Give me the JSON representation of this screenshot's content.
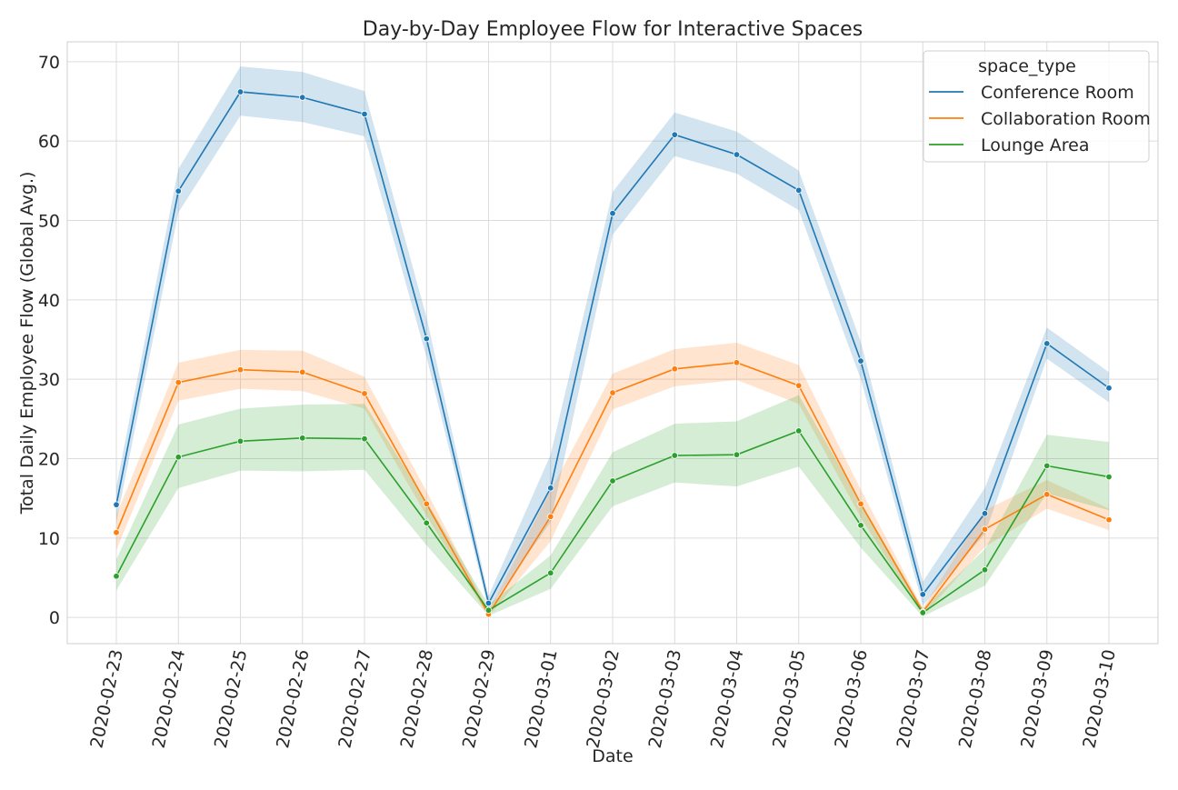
{
  "colors": {
    "conference": "#1f77b4",
    "collaboration": "#ff7f0e",
    "lounge": "#2ca02c",
    "grid": "#dcdcdc",
    "frame": "#cfcfcf"
  },
  "chart_data": {
    "type": "line",
    "title": "Day-by-Day Employee Flow for Interactive Spaces",
    "xlabel": "Date",
    "ylabel": "Total Daily Employee Flow (Global Avg.)",
    "ylim": [
      -3.3,
      72.5
    ],
    "yticks": [
      0,
      10,
      20,
      30,
      40,
      50,
      60,
      70
    ],
    "grid": true,
    "legend_title": "space_type",
    "legend_position": "top-right",
    "x": [
      "2020-02-23",
      "2020-02-24",
      "2020-02-25",
      "2020-02-26",
      "2020-02-27",
      "2020-02-28",
      "2020-02-29",
      "2020-03-01",
      "2020-03-02",
      "2020-03-03",
      "2020-03-04",
      "2020-03-05",
      "2020-03-06",
      "2020-03-07",
      "2020-03-08",
      "2020-03-09",
      "2020-03-10"
    ],
    "series": [
      {
        "name": "Conference Room",
        "color_key": "conference",
        "values": [
          14.2,
          53.7,
          66.2,
          65.5,
          63.4,
          35.1,
          1.8,
          16.3,
          50.9,
          60.8,
          58.3,
          53.8,
          32.3,
          2.9,
          13.1,
          34.5,
          28.9
        ],
        "lower": [
          12.0,
          51.0,
          63.2,
          62.4,
          60.6,
          32.8,
          1.0,
          12.0,
          48.2,
          58.1,
          55.9,
          51.3,
          30.0,
          1.5,
          10.5,
          32.6,
          27.1
        ],
        "upper": [
          16.5,
          56.5,
          69.4,
          68.7,
          66.3,
          37.8,
          2.7,
          20.5,
          53.6,
          63.6,
          61.2,
          56.3,
          34.7,
          4.5,
          16.3,
          36.5,
          30.9
        ]
      },
      {
        "name": "Collaboration Room",
        "color_key": "collaboration",
        "values": [
          10.7,
          29.6,
          31.2,
          30.9,
          28.2,
          14.3,
          0.4,
          12.7,
          28.3,
          31.3,
          32.1,
          29.2,
          14.3,
          0.7,
          11.1,
          15.5,
          12.3
        ],
        "lower": [
          8.5,
          27.3,
          28.8,
          28.5,
          26.3,
          12.8,
          0.1,
          9.6,
          26.2,
          29.1,
          29.9,
          26.9,
          12.6,
          0.2,
          8.9,
          13.7,
          11.0
        ],
        "upper": [
          12.9,
          32.1,
          33.7,
          33.6,
          30.3,
          15.9,
          0.8,
          16.0,
          30.7,
          33.8,
          34.6,
          31.8,
          16.1,
          1.2,
          13.5,
          17.3,
          13.7
        ]
      },
      {
        "name": "Lounge Area",
        "color_key": "lounge",
        "values": [
          5.2,
          20.2,
          22.2,
          22.6,
          22.5,
          11.9,
          0.9,
          5.6,
          17.2,
          20.4,
          20.5,
          23.5,
          11.6,
          0.6,
          6.0,
          19.1,
          17.7
        ],
        "lower": [
          3.4,
          16.3,
          18.5,
          18.4,
          18.6,
          9.1,
          0.2,
          3.6,
          14.0,
          17.0,
          16.5,
          19.0,
          8.8,
          0.1,
          4.0,
          15.6,
          13.5
        ],
        "upper": [
          7.3,
          24.3,
          26.3,
          26.8,
          26.9,
          14.6,
          1.6,
          7.8,
          20.8,
          24.4,
          24.7,
          28.0,
          14.5,
          1.1,
          8.6,
          23.0,
          22.1
        ]
      }
    ]
  }
}
